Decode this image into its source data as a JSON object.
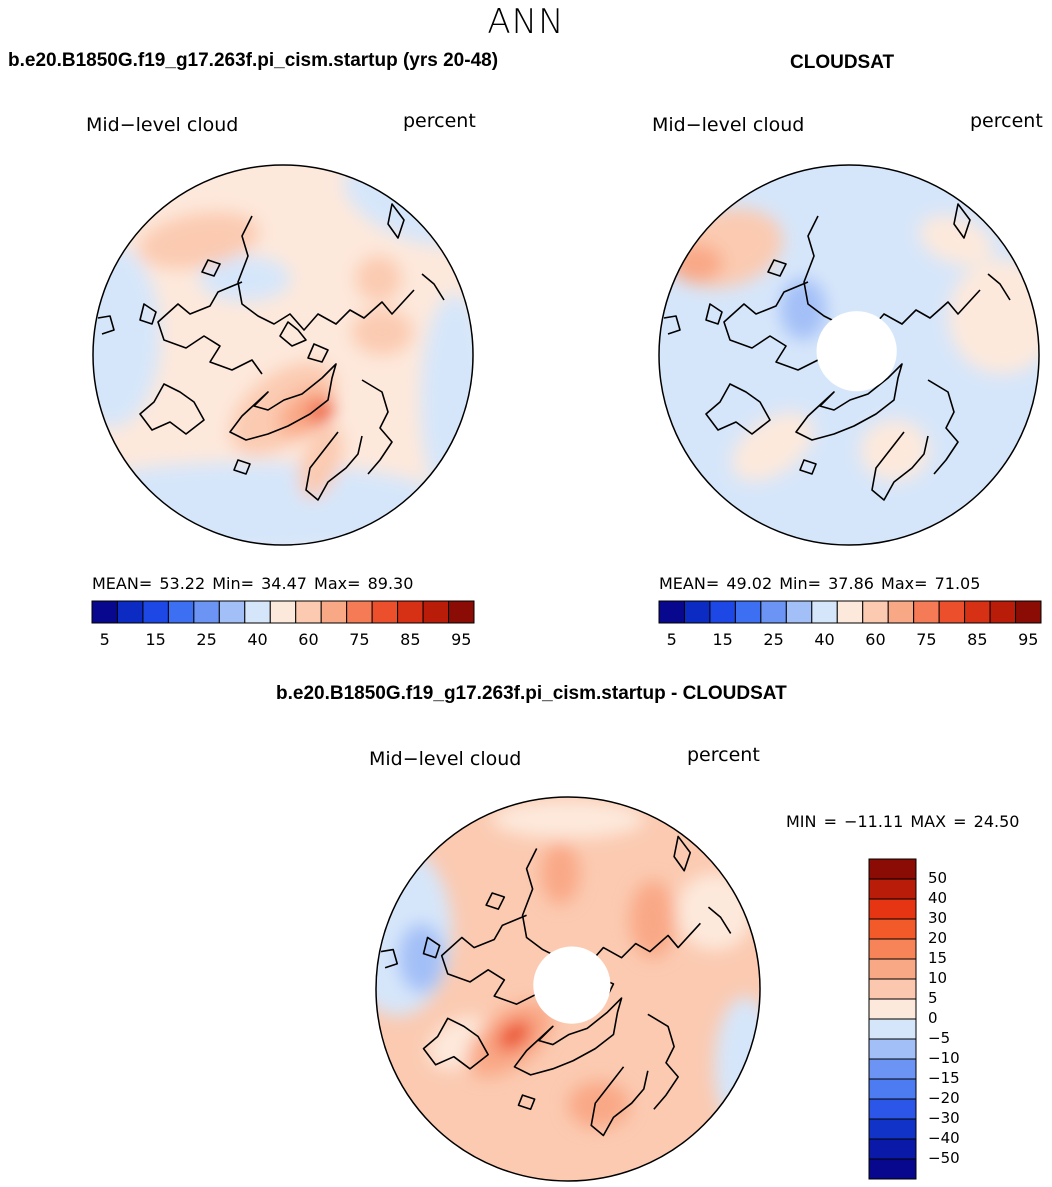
{
  "season": "ANN",
  "panels": [
    {
      "title": "b.e20.B1850G.f19_g17.263f.pi_cism.startup (yrs 20-48)",
      "variable": "Mid−level cloud",
      "units": "percent",
      "stats": {
        "mean_label": "MEAN=",
        "mean": "53.22",
        "min_label": "Min=",
        "min": "34.47",
        "max_label": "Max=",
        "max": "89.30"
      },
      "has_polar_hole": false
    },
    {
      "title": "CLOUDSAT",
      "variable": "Mid−level cloud",
      "units": "percent",
      "stats": {
        "mean_label": "MEAN=",
        "mean": "49.02",
        "min_label": "Min=",
        "min": "37.86",
        "max_label": "Max=",
        "max": "71.05"
      },
      "has_polar_hole": true
    },
    {
      "title": "b.e20.B1850G.f19_g17.263f.pi_cism.startup - CLOUDSAT",
      "variable": "Mid−level cloud",
      "units": "percent",
      "minmax": "MIN = −11.11 MAX =  24.50",
      "has_polar_hole": true
    }
  ],
  "field_colorbar": {
    "colors": [
      "#08088e",
      "#0c2bc3",
      "#1e48e6",
      "#3d6ff2",
      "#6b94f5",
      "#a3bff7",
      "#d6e6fa",
      "#fde8dc",
      "#fbcab1",
      "#f9a886",
      "#f47b56",
      "#eb4f2b",
      "#d63015",
      "#b91c08",
      "#8b0b05"
    ],
    "tick_labels": [
      "5",
      "15",
      "25",
      "40",
      "60",
      "75",
      "85",
      "95"
    ]
  },
  "diff_colorbar": {
    "colors_top_to_bottom": [
      "#8b0b05",
      "#b91c08",
      "#e63512",
      "#f35a2a",
      "#f78358",
      "#f9a886",
      "#fbc7ae",
      "#fde9dc",
      "#d6e6fa",
      "#a3bff7",
      "#6b94f5",
      "#4d7bf2",
      "#2b56e8",
      "#1233c8",
      "#0a19a8",
      "#08088e"
    ],
    "labels": [
      "50",
      "40",
      "30",
      "20",
      "15",
      "10",
      "5",
      "0",
      "−5",
      "−10",
      "−15",
      "−20",
      "−30",
      "−40",
      "−50"
    ]
  },
  "palette": {
    "ocean_neutral": "#fde9dc",
    "light_blue": "#d6e6fa",
    "mid_blue": "#a3bff7",
    "light_red": "#fbcab1",
    "mid_red": "#f9a886",
    "strong_red": "#eb4f2b"
  }
}
